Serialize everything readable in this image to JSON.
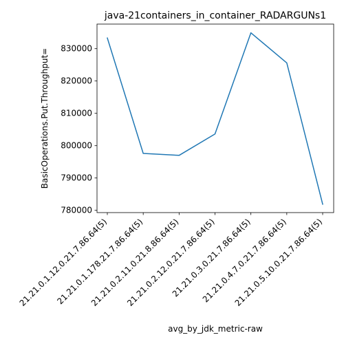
{
  "chart_data": {
    "type": "line",
    "title": "java-21containers_in_container_RADARGUNs1",
    "xlabel": "avg_by_jdk_metric-raw",
    "ylabel": "BasicOperations.Put.Throughput=",
    "categories": [
      "21.21.0.1.12.0.21.7.86.64(5)",
      "21.21.0.1.178.21.7.86.64(5)",
      "21.21.0.2.11.0.21.8.86.64(5)",
      "21.21.0.2.12.0.21.7.86.64(5)",
      "21.21.0.3.0.21.7.86.64(5)",
      "21.21.0.4.7.0.21.7.86.64(5)",
      "21.21.0.5.10.0.21.7.86.64(5)"
    ],
    "series": [
      {
        "values": [
          833300,
          797600,
          797000,
          803600,
          834900,
          825600,
          781900
        ]
      }
    ],
    "yticks": [
      780000,
      790000,
      800000,
      810000,
      820000,
      830000
    ],
    "ytick_labels": [
      "780000",
      "790000",
      "800000",
      "810000",
      "820000",
      "830000"
    ],
    "ylim": [
      779300,
      837600
    ],
    "grid": false,
    "line_color": "#1f77b4"
  }
}
